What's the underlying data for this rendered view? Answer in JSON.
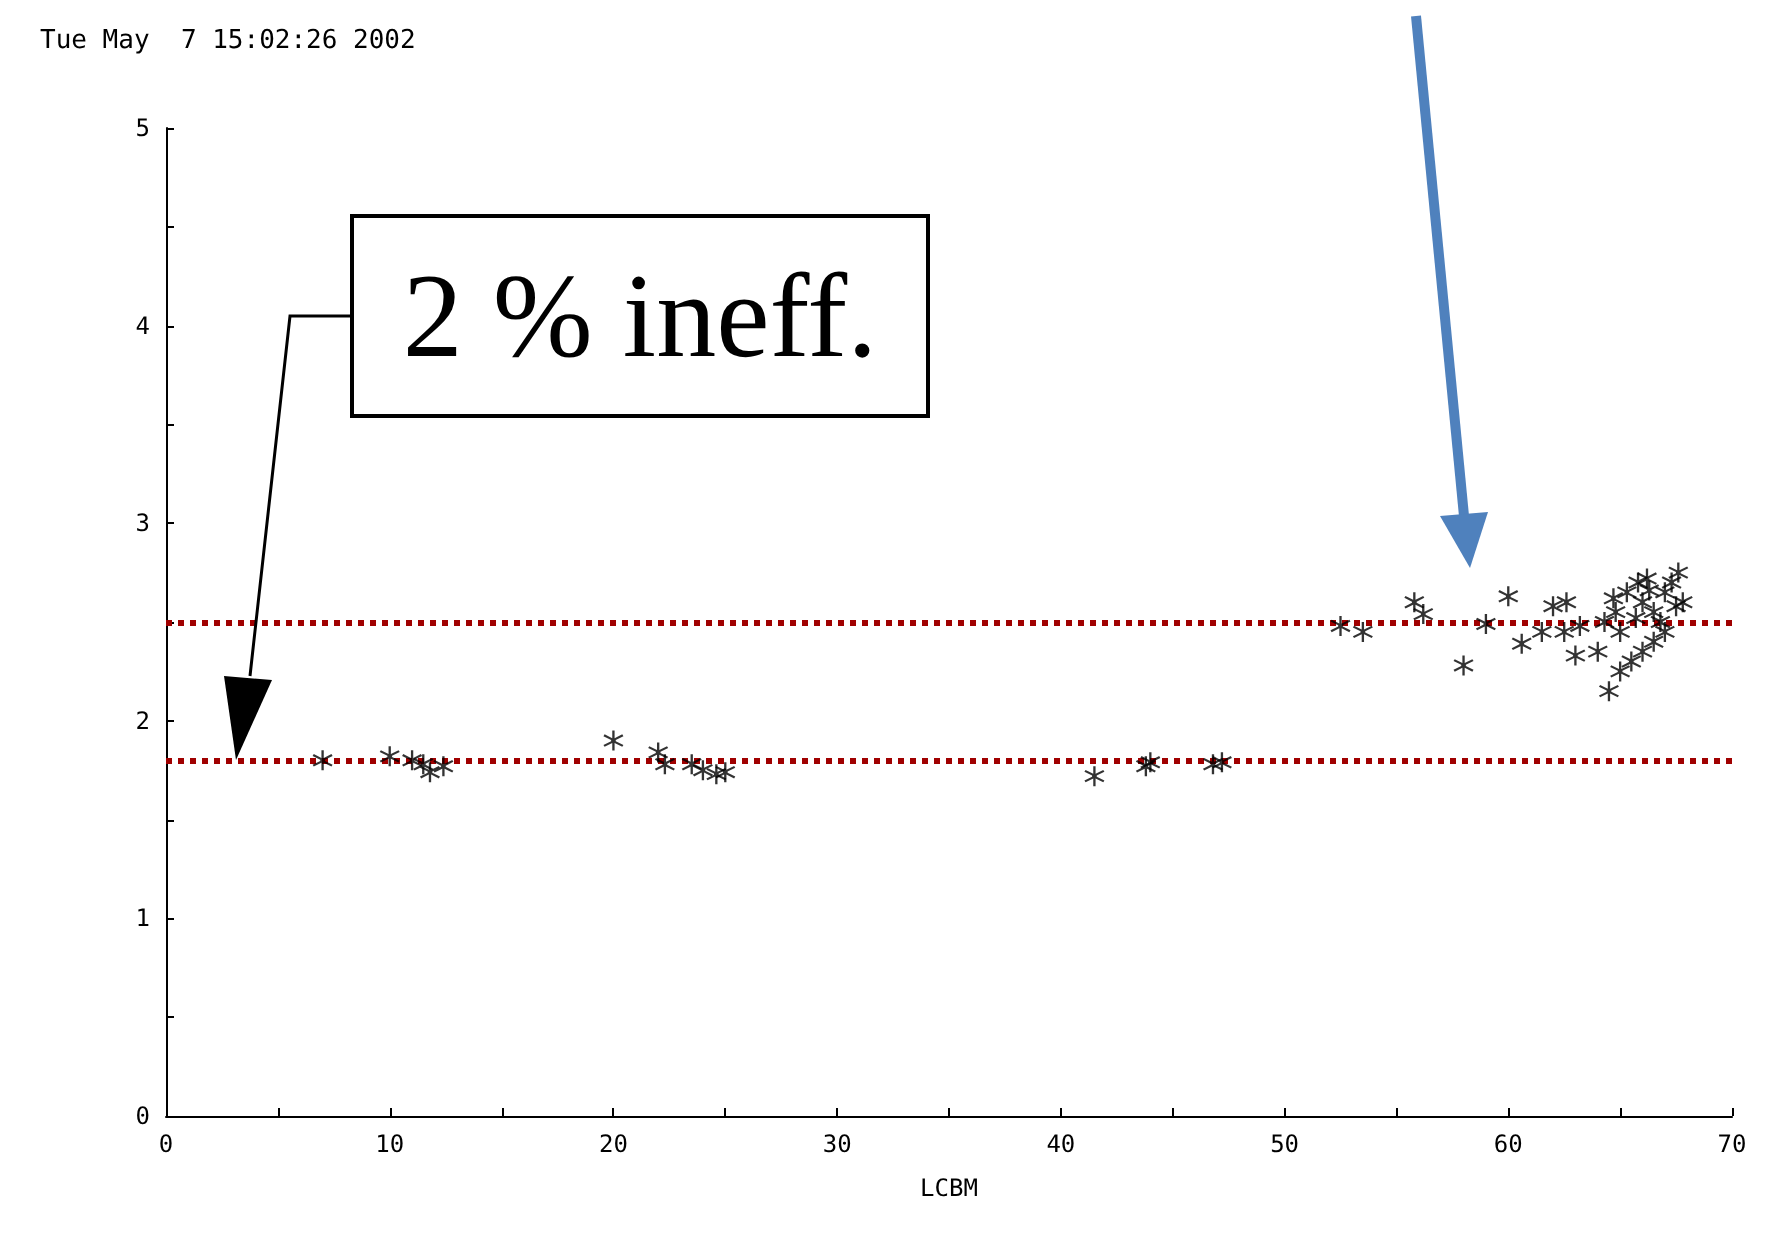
{
  "chart_data": {
    "type": "scatter",
    "xlabel": "LCBM",
    "marker": "star",
    "grid": false,
    "xlim": [
      0,
      70
    ],
    "ylim": [
      0,
      5
    ],
    "xticks": [
      0,
      {
        "value": 5,
        "label": null
      },
      10,
      {
        "value": 15,
        "label": null
      },
      20,
      {
        "value": 25,
        "label": null
      },
      30,
      {
        "value": 35,
        "label": null
      },
      40,
      {
        "value": 45,
        "label": null
      },
      50,
      {
        "value": 55,
        "label": null
      },
      60,
      {
        "value": 65,
        "label": null
      },
      70
    ],
    "yticks": [
      0,
      {
        "value": 0.5,
        "label": null
      },
      1,
      {
        "value": 1.5,
        "label": null
      },
      2,
      {
        "value": 2.5,
        "label": null
      },
      3,
      {
        "value": 3.5,
        "label": null
      },
      4,
      {
        "value": 4.5,
        "label": null
      },
      5
    ],
    "series": [
      {
        "color": "#000000",
        "x": [
          7,
          10,
          11,
          11.5,
          11.8,
          12.4,
          20,
          22,
          22.3,
          23.5,
          24,
          24.6,
          25,
          41.5,
          43.8,
          44,
          46.8,
          47.2,
          52.5,
          53.5,
          55.8,
          56.2,
          58,
          59,
          60,
          60.6,
          61.5,
          62,
          62.5,
          62.6,
          63,
          63.2,
          64,
          64.3,
          64.5,
          64.7,
          64.8,
          65,
          65,
          65.3,
          65.5,
          65.7,
          65.8,
          66,
          66,
          66.2,
          66.3,
          66.5,
          66.5,
          66.8,
          67,
          67,
          67.3,
          67.5,
          67.6,
          67.8
        ],
        "values": [
          1.8,
          1.82,
          1.8,
          1.78,
          1.74,
          1.77,
          1.9,
          1.84,
          1.78,
          1.78,
          1.75,
          1.73,
          1.74,
          1.72,
          1.77,
          1.79,
          1.78,
          1.79,
          2.48,
          2.45,
          2.6,
          2.54,
          2.28,
          2.49,
          2.63,
          2.39,
          2.45,
          2.58,
          2.45,
          2.6,
          2.33,
          2.48,
          2.35,
          2.5,
          2.15,
          2.62,
          2.55,
          2.25,
          2.45,
          2.65,
          2.3,
          2.52,
          2.7,
          2.6,
          2.35,
          2.72,
          2.66,
          2.4,
          2.55,
          2.5,
          2.65,
          2.45,
          2.7,
          2.58,
          2.75,
          2.6
        ]
      }
    ],
    "ref_lines": [
      {
        "axis": "y",
        "value": 2.5,
        "color": "#a00000",
        "line_style": "dotted"
      },
      {
        "axis": "y",
        "value": 1.8,
        "color": "#a00000",
        "line_style": "dotted"
      }
    ],
    "annotations": [
      "Tue May  7 15:02:26 2002",
      "2 % ineff."
    ]
  }
}
